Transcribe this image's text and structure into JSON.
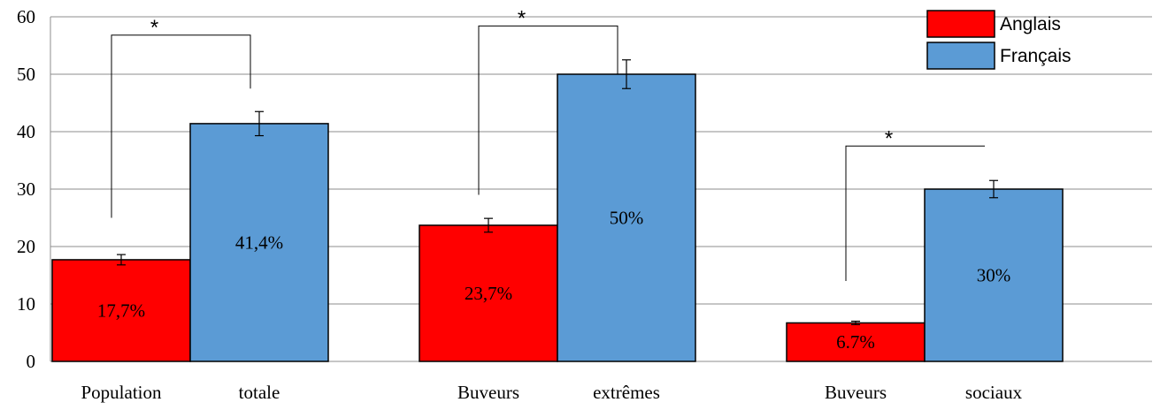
{
  "chart_data": {
    "type": "bar",
    "ylim": [
      0,
      60
    ],
    "yticks": [
      0,
      10,
      20,
      30,
      40,
      50,
      60
    ],
    "grid": true,
    "legend_placement": "top-right",
    "categories": [
      {
        "label_left": "Population",
        "label_right": "totale"
      },
      {
        "label_left": "Buveurs",
        "label_right": "extrêmes"
      },
      {
        "label_left": "Buveurs",
        "label_right": "sociaux"
      }
    ],
    "series": [
      {
        "name": "Anglais",
        "color": "#ff0000",
        "values": [
          17.7,
          23.7,
          6.7
        ],
        "errors": [
          0.9,
          1.2,
          0.3
        ],
        "labels": [
          "17,7%",
          "23,7%",
          "6.7%"
        ]
      },
      {
        "name": "Français",
        "color": "#5b9bd5",
        "values": [
          41.4,
          50,
          30
        ],
        "errors": [
          2.1,
          2.5,
          1.5
        ],
        "labels": [
          "41,4%",
          "50%",
          "30%"
        ]
      }
    ],
    "significance": [
      {
        "category": 0,
        "left_y": 25,
        "right_y": 47.5,
        "top_y": 56.8,
        "marker": "*"
      },
      {
        "category": 1,
        "left_y": 29,
        "right_y": 50,
        "top_y": 58.4,
        "marker": "*"
      },
      {
        "category": 2,
        "left_y": 14,
        "right_y": 37.5,
        "top_y": 37.5,
        "marker": "*"
      }
    ]
  }
}
